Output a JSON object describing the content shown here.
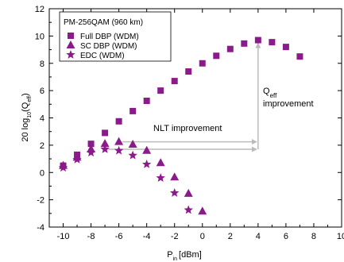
{
  "chart_data": {
    "type": "scatter",
    "xlabel": "P",
    "xlabel_sub": "in",
    "xlabel_unit": "[dBm]",
    "ylabel_pre": "20 log",
    "ylabel_sub1": "10",
    "ylabel_mid": "(Q",
    "ylabel_sub2": "eff",
    "ylabel_post": ")",
    "xlim": [
      -11,
      10
    ],
    "ylim": [
      -4,
      12
    ],
    "xticks": [
      -10,
      -8,
      -6,
      -4,
      -2,
      0,
      2,
      4,
      6,
      8,
      10
    ],
    "xtick_labels": [
      "-10",
      "-8",
      "-6",
      "-4",
      "-2",
      "0",
      "2",
      "4",
      "6",
      "8",
      "10"
    ],
    "yticks": [
      -4,
      -2,
      0,
      2,
      4,
      6,
      8,
      10,
      12
    ],
    "ytick_labels": [
      "-4",
      "-2",
      "0",
      "2",
      "4",
      "6",
      "8",
      "10",
      "12"
    ],
    "grid": false,
    "legend_title": "PM-256QAM (960 km)",
    "legend_position": "top-left",
    "series": [
      {
        "name": "Full DBP (WDM)",
        "marker": "square",
        "color": "#8B1A8B",
        "x": [
          -10,
          -9,
          -8,
          -7,
          -6,
          -5,
          -4,
          -3,
          -2,
          -1,
          0,
          1,
          2,
          3,
          4,
          5,
          6,
          7
        ],
        "y": [
          0.5,
          1.3,
          2.1,
          2.9,
          3.75,
          4.5,
          5.25,
          6.0,
          6.7,
          7.4,
          8.0,
          8.55,
          9.05,
          9.45,
          9.7,
          9.55,
          9.2,
          8.5
        ]
      },
      {
        "name": "SC DBP (WDM)",
        "marker": "triangle",
        "color": "#8B1A8B",
        "x": [
          -10,
          -9,
          -8,
          -7,
          -6,
          -5,
          -4,
          -3,
          -2,
          -1,
          0
        ],
        "y": [
          0.5,
          1.1,
          1.7,
          2.1,
          2.25,
          2.05,
          1.6,
          0.7,
          -0.35,
          -1.55,
          -2.85
        ]
      },
      {
        "name": "EDC (WDM)",
        "marker": "star",
        "color": "#8B1A8B",
        "x": [
          -10,
          -9,
          -8,
          -7,
          -6,
          -5,
          -4,
          -3,
          -2,
          -1
        ],
        "y": [
          0.35,
          0.95,
          1.45,
          1.7,
          1.6,
          1.25,
          0.6,
          -0.4,
          -1.5,
          -2.75
        ]
      }
    ],
    "annotations": {
      "qeff_pre": "Q",
      "qeff_sub": "eff",
      "qeff_line2": "improvement",
      "nlt_label": "NLT improvement",
      "arrow_color": "#bbbbbb"
    }
  }
}
